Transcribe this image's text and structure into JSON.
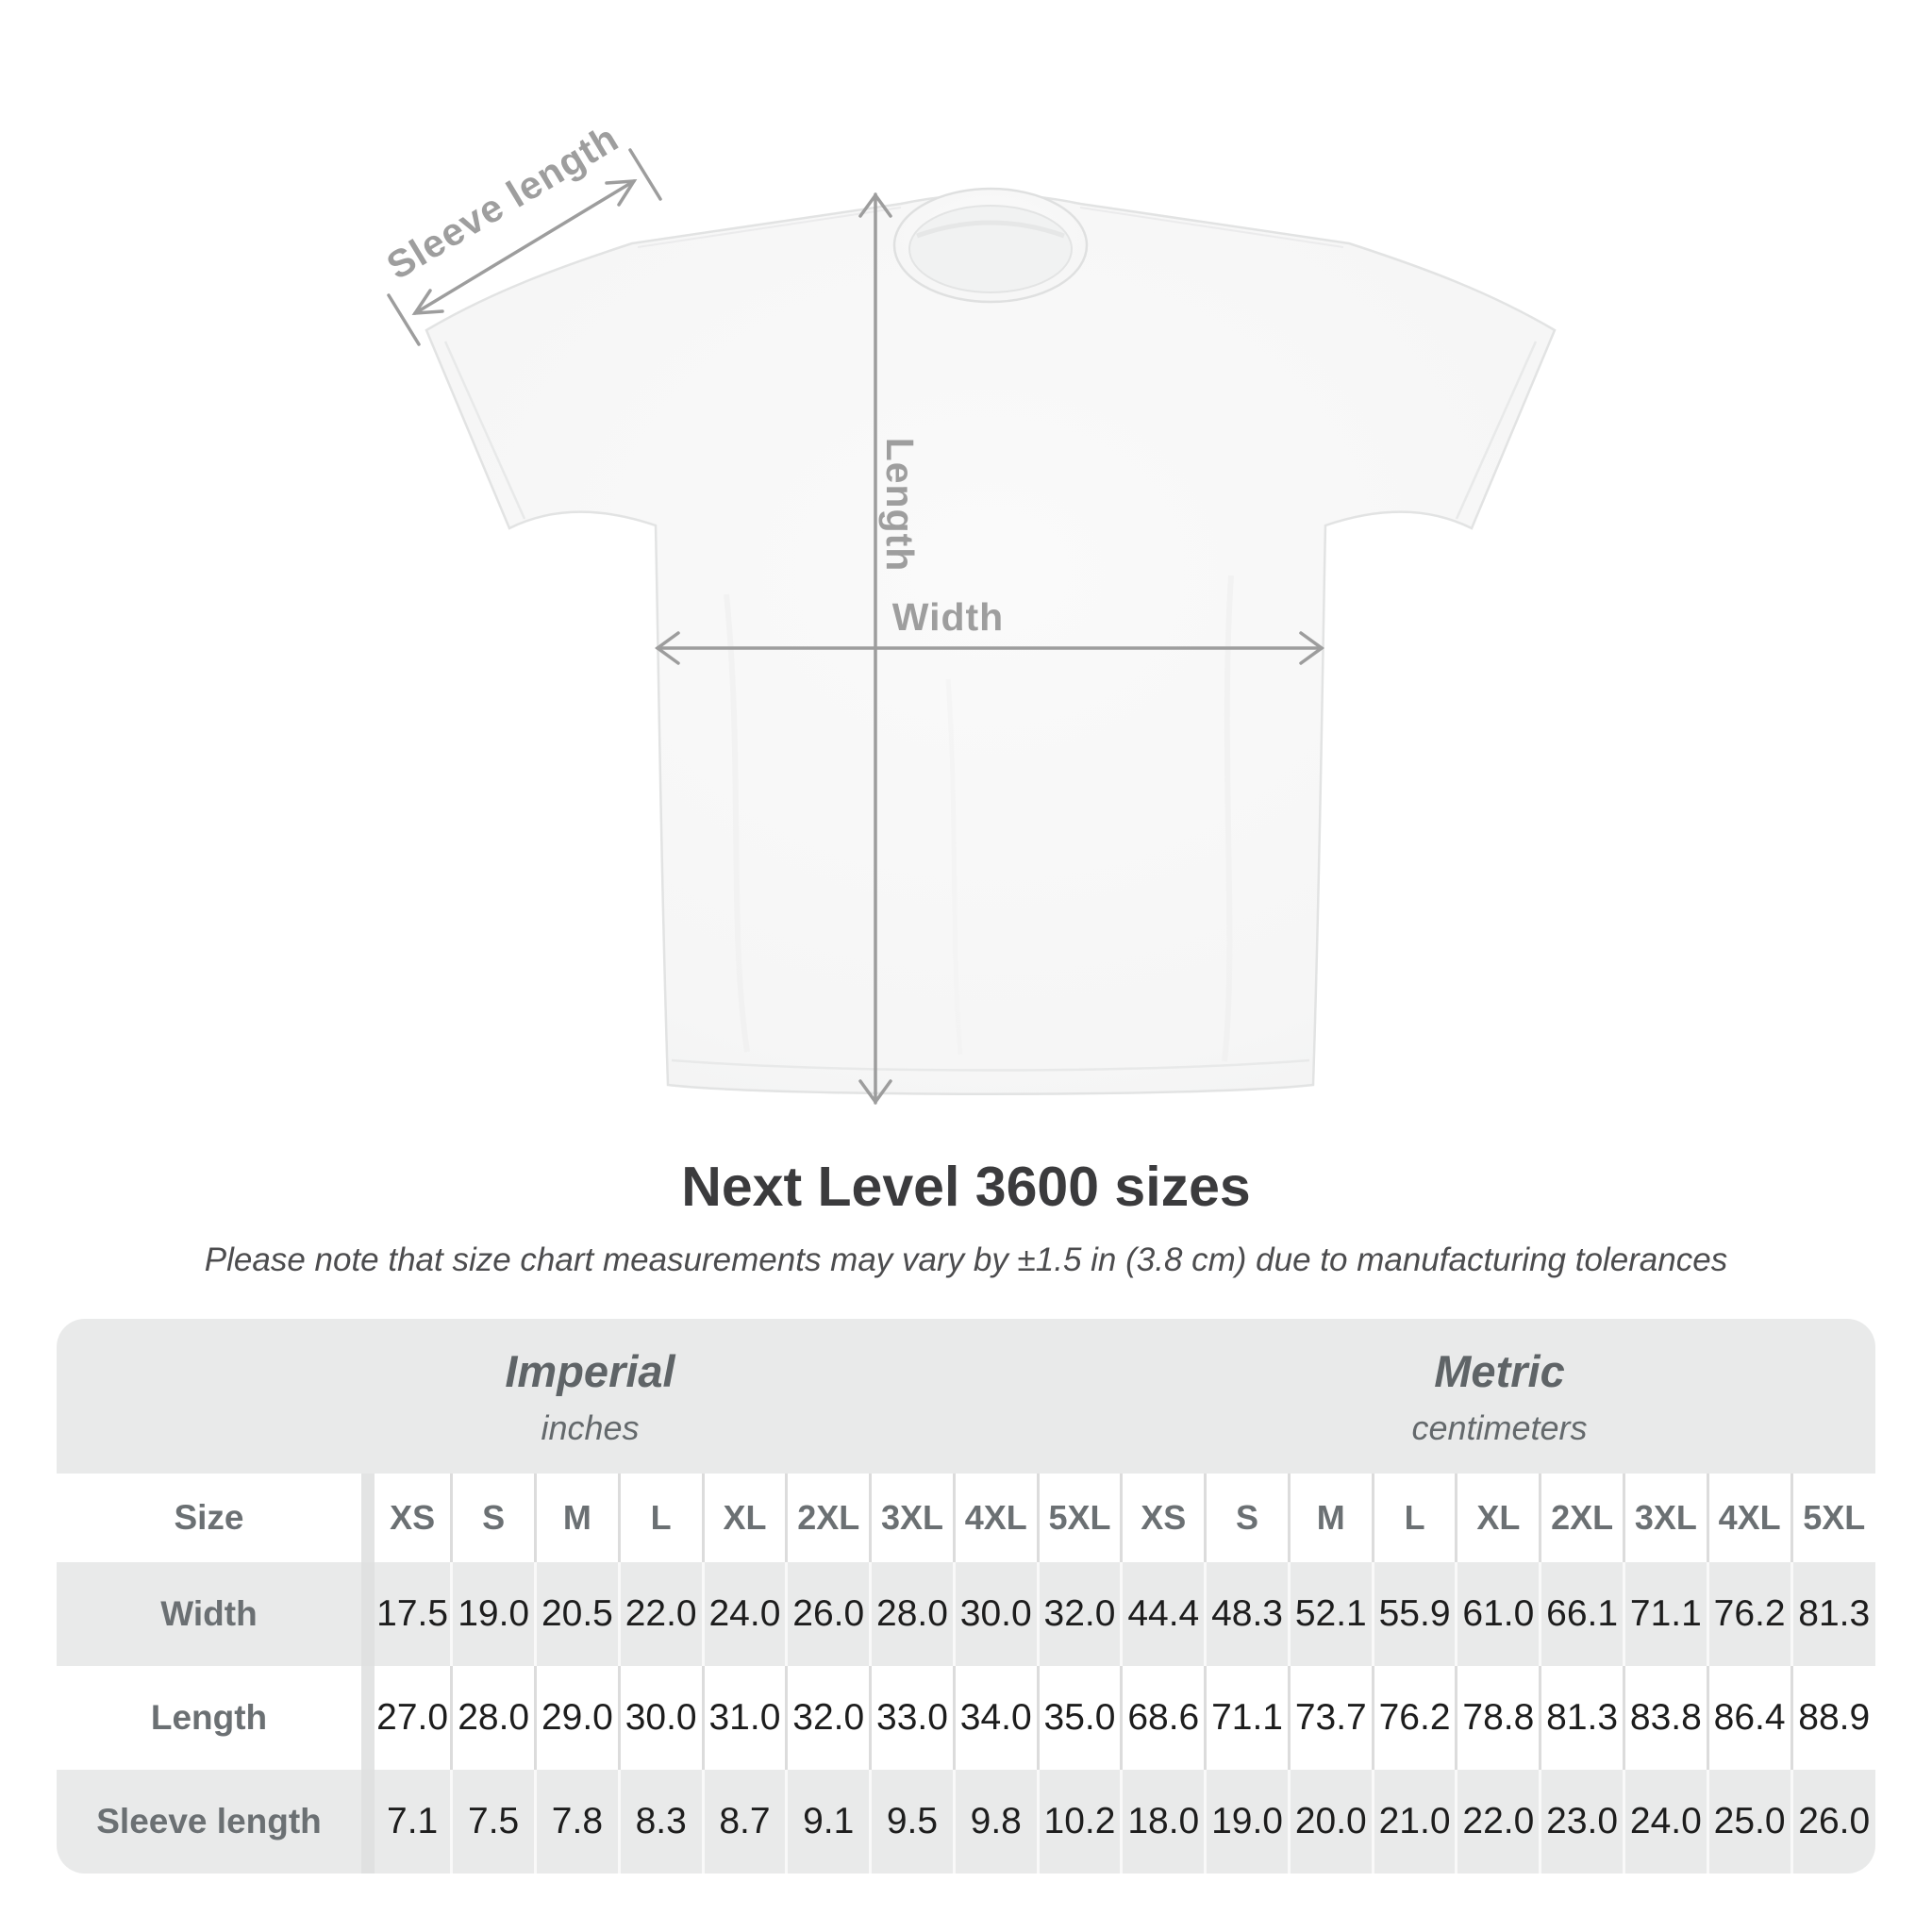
{
  "title": "Next Level 3600 sizes",
  "subtitle": "Please note that size chart measurements may vary by ±1.5 in (3.8 cm) due to manufacturing tolerances",
  "diagram": {
    "sleeve_label": "Sleeve length",
    "length_label": "Length",
    "width_label": "Width"
  },
  "colors": {
    "title_text": "#3b3b3d",
    "subtitle_text": "#4c4c4e",
    "annotation_gray": "#9e9e9e",
    "table_background": "#e9eaea",
    "table_header_text": "#6b7073",
    "table_value_text": "#1d1d1d",
    "shirt_fill": "#f7f7f7"
  },
  "chart_data": {
    "type": "table",
    "title": "Next Level 3600 sizes",
    "note": "Please note that size chart measurements may vary by ±1.5 in (3.8 cm) due to manufacturing tolerances",
    "unit_groups": [
      {
        "label": "Imperial",
        "sublabel": "inches"
      },
      {
        "label": "Metric",
        "sublabel": "centimeters"
      }
    ],
    "size_column_header": "Size",
    "sizes": [
      "XS",
      "S",
      "M",
      "L",
      "XL",
      "2XL",
      "3XL",
      "4XL",
      "5XL"
    ],
    "rows": [
      {
        "label": "Width",
        "imperial": [
          "17.5",
          "19.0",
          "20.5",
          "22.0",
          "24.0",
          "26.0",
          "28.0",
          "30.0",
          "32.0"
        ],
        "metric": [
          "44.4",
          "48.3",
          "52.1",
          "55.9",
          "61.0",
          "66.1",
          "71.1",
          "76.2",
          "81.3"
        ]
      },
      {
        "label": "Length",
        "imperial": [
          "27.0",
          "28.0",
          "29.0",
          "30.0",
          "31.0",
          "32.0",
          "33.0",
          "34.0",
          "35.0"
        ],
        "metric": [
          "68.6",
          "71.1",
          "73.7",
          "76.2",
          "78.8",
          "81.3",
          "83.8",
          "86.4",
          "88.9"
        ]
      },
      {
        "label": "Sleeve length",
        "imperial": [
          "7.1",
          "7.5",
          "7.8",
          "8.3",
          "8.7",
          "9.1",
          "9.5",
          "9.8",
          "10.2"
        ],
        "metric": [
          "18.0",
          "19.0",
          "20.0",
          "21.0",
          "22.0",
          "23.0",
          "24.0",
          "25.0",
          "26.0"
        ]
      }
    ]
  }
}
